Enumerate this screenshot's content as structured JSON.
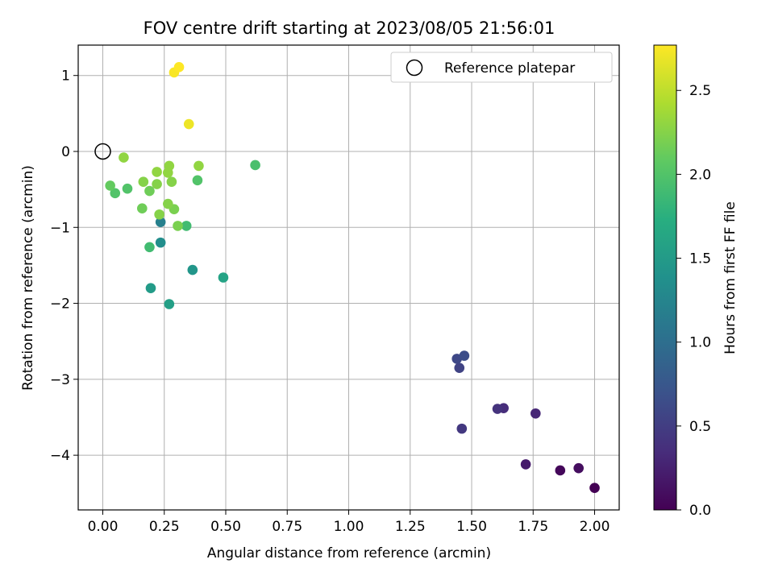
{
  "chart_data": {
    "type": "scatter",
    "title": "FOV centre drift starting at 2023/08/05 21:56:01",
    "xlabel": "Angular distance from reference (arcmin)",
    "ylabel": "Rotation from reference (arcmin)",
    "xlim": [
      -0.1,
      2.1
    ],
    "ylim": [
      -4.72,
      1.4
    ],
    "xticks": [
      0.0,
      0.25,
      0.5,
      0.75,
      1.0,
      1.25,
      1.5,
      1.75,
      2.0
    ],
    "xtick_labels": [
      "0.00",
      "0.25",
      "0.50",
      "0.75",
      "1.00",
      "1.25",
      "1.50",
      "1.75",
      "2.00"
    ],
    "yticks": [
      1,
      0,
      -1,
      -2,
      -3,
      -4
    ],
    "ytick_labels": [
      "1",
      "0",
      "−1",
      "−2",
      "−3",
      "−4"
    ],
    "grid": true,
    "legend": {
      "placement": "top-right",
      "entries": [
        {
          "label": "Reference platepar",
          "marker": "open-circle"
        }
      ]
    },
    "reference_point": {
      "x": 0.0,
      "y": 0.0
    },
    "colorbar": {
      "label": "Hours from first FF file",
      "colormap": "viridis",
      "range": [
        0.0,
        2.77
      ],
      "ticks": [
        0.0,
        0.5,
        1.0,
        1.5,
        2.0,
        2.5
      ],
      "tick_labels": [
        "0.0",
        "0.5",
        "1.0",
        "1.5",
        "2.0",
        "2.5"
      ]
    },
    "points": [
      {
        "x": 2.0,
        "y": -4.43,
        "c": 0.0
      },
      {
        "x": 1.86,
        "y": -4.2,
        "c": 0.05
      },
      {
        "x": 1.935,
        "y": -4.17,
        "c": 0.1
      },
      {
        "x": 1.72,
        "y": -4.12,
        "c": 0.2
      },
      {
        "x": 1.76,
        "y": -3.45,
        "c": 0.3
      },
      {
        "x": 1.63,
        "y": -3.38,
        "c": 0.35
      },
      {
        "x": 1.605,
        "y": -3.39,
        "c": 0.4
      },
      {
        "x": 1.46,
        "y": -3.65,
        "c": 0.45
      },
      {
        "x": 1.45,
        "y": -2.85,
        "c": 0.55
      },
      {
        "x": 1.44,
        "y": -2.73,
        "c": 0.6
      },
      {
        "x": 1.47,
        "y": -2.69,
        "c": 0.65
      },
      {
        "x": 0.235,
        "y": -0.93,
        "c": 1.2
      },
      {
        "x": 0.235,
        "y": -1.2,
        "c": 1.35
      },
      {
        "x": 0.365,
        "y": -1.56,
        "c": 1.45
      },
      {
        "x": 0.195,
        "y": -1.8,
        "c": 1.5
      },
      {
        "x": 0.27,
        "y": -2.01,
        "c": 1.55
      },
      {
        "x": 0.49,
        "y": -1.66,
        "c": 1.6
      },
      {
        "x": 0.19,
        "y": -1.26,
        "c": 1.9
      },
      {
        "x": 0.34,
        "y": -0.98,
        "c": 1.9
      },
      {
        "x": 0.62,
        "y": -0.18,
        "c": 1.95
      },
      {
        "x": 0.05,
        "y": -0.55,
        "c": 2.0
      },
      {
        "x": 0.1,
        "y": -0.49,
        "c": 2.0
      },
      {
        "x": 0.385,
        "y": -0.38,
        "c": 2.0
      },
      {
        "x": 0.03,
        "y": -0.45,
        "c": 2.1
      },
      {
        "x": 0.16,
        "y": -0.75,
        "c": 2.15
      },
      {
        "x": 0.19,
        "y": -0.52,
        "c": 2.15
      },
      {
        "x": 0.29,
        "y": -0.76,
        "c": 2.2
      },
      {
        "x": 0.305,
        "y": -0.98,
        "c": 2.2
      },
      {
        "x": 0.165,
        "y": -0.4,
        "c": 2.25
      },
      {
        "x": 0.22,
        "y": -0.43,
        "c": 2.25
      },
      {
        "x": 0.28,
        "y": -0.4,
        "c": 2.25
      },
      {
        "x": 0.23,
        "y": -0.83,
        "c": 2.25
      },
      {
        "x": 0.265,
        "y": -0.69,
        "c": 2.25
      },
      {
        "x": 0.085,
        "y": -0.08,
        "c": 2.3
      },
      {
        "x": 0.22,
        "y": -0.27,
        "c": 2.3
      },
      {
        "x": 0.265,
        "y": -0.28,
        "c": 2.3
      },
      {
        "x": 0.27,
        "y": -0.19,
        "c": 2.3
      },
      {
        "x": 0.39,
        "y": -0.19,
        "c": 2.3
      },
      {
        "x": 0.35,
        "y": 0.36,
        "c": 2.7
      },
      {
        "x": 0.29,
        "y": 1.04,
        "c": 2.75
      },
      {
        "x": 0.31,
        "y": 1.11,
        "c": 2.77
      }
    ]
  }
}
